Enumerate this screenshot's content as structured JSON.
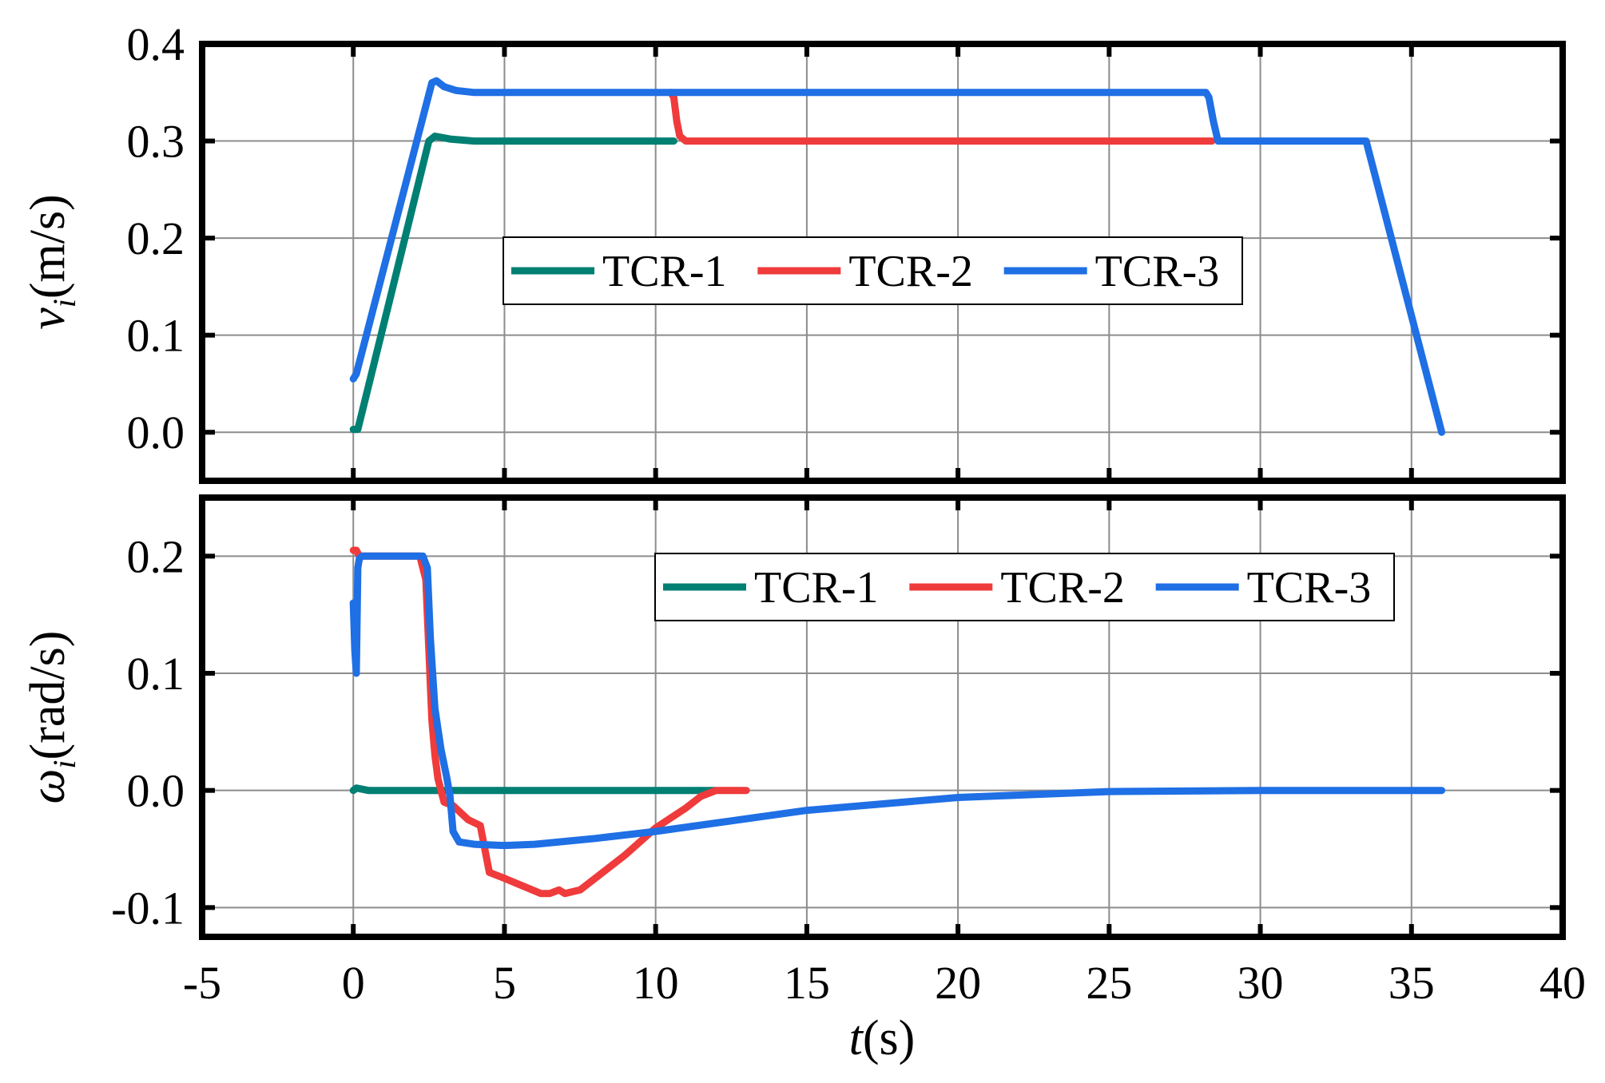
{
  "chart_data": [
    {
      "type": "line",
      "panel": "top",
      "ylabel": {
        "symbol": "v",
        "subscript": "i",
        "unit": "(m/s)"
      },
      "xlim": [
        -5,
        40
      ],
      "ylim": [
        -0.05,
        0.4
      ],
      "yticks": [
        0.0,
        0.1,
        0.2,
        0.3,
        0.4
      ],
      "ytick_labels": [
        "0.0",
        "0.1",
        "0.2",
        "0.3",
        "0.4"
      ],
      "grid": true,
      "legend_position": "center",
      "series": [
        {
          "name": "TCR-1",
          "color": "#007f73",
          "x": [
            0.0,
            0.15,
            2.5,
            2.7,
            3.2,
            4.0,
            10.6
          ],
          "y": [
            0.003,
            0.003,
            0.3,
            0.305,
            0.302,
            0.3,
            0.3
          ]
        },
        {
          "name": "TCR-2",
          "color": "#ef3b3b",
          "x": [
            10.5,
            10.6,
            10.7,
            10.8,
            11.0,
            28.4
          ],
          "y": [
            0.35,
            0.345,
            0.32,
            0.305,
            0.3,
            0.3
          ]
        },
        {
          "name": "TCR-3",
          "color": "#1f6fe5",
          "x": [
            0.0,
            0.1,
            2.6,
            2.75,
            3.0,
            3.4,
            4.0,
            10.5,
            28.2,
            28.3,
            28.45,
            28.6,
            33.5,
            36.0
          ],
          "y": [
            0.055,
            0.06,
            0.36,
            0.362,
            0.356,
            0.352,
            0.35,
            0.35,
            0.35,
            0.345,
            0.32,
            0.3,
            0.3,
            0.0
          ]
        }
      ]
    },
    {
      "type": "line",
      "panel": "bottom",
      "ylabel": {
        "symbol": "ω",
        "subscript": "i",
        "unit": "(rad/s)"
      },
      "xlabel": {
        "symbol": "t",
        "unit": "(s)"
      },
      "xlim": [
        -5,
        40
      ],
      "ylim": [
        -0.125,
        0.25
      ],
      "xticks": [
        -5,
        0,
        5,
        10,
        15,
        20,
        25,
        30,
        35,
        40
      ],
      "xtick_labels": [
        "-5",
        "0",
        "5",
        "10",
        "15",
        "20",
        "25",
        "30",
        "35",
        "40"
      ],
      "yticks": [
        -0.1,
        0.0,
        0.1,
        0.2
      ],
      "ytick_labels": [
        "-0.1",
        "0.0",
        "0.1",
        "0.2"
      ],
      "grid": true,
      "legend_position": "top-right",
      "series": [
        {
          "name": "TCR-1",
          "color": "#007f73",
          "x": [
            0.0,
            0.1,
            0.3,
            0.5,
            12.0
          ],
          "y": [
            0.0,
            0.002,
            0.001,
            0.0,
            0.0
          ]
        },
        {
          "name": "TCR-2",
          "color": "#ef3b3b",
          "x": [
            0.0,
            0.1,
            0.2,
            2.2,
            2.4,
            2.5,
            2.6,
            2.7,
            2.8,
            3.0,
            3.3,
            3.8,
            4.2,
            4.5,
            5.0,
            6.2,
            6.5,
            6.8,
            7.0,
            7.5,
            8.0,
            9.0,
            10.0,
            11.0,
            11.5,
            12.0,
            13.0
          ],
          "y": [
            0.205,
            0.205,
            0.2,
            0.2,
            0.18,
            0.12,
            0.06,
            0.03,
            0.01,
            -0.01,
            -0.013,
            -0.025,
            -0.03,
            -0.07,
            -0.075,
            -0.088,
            -0.088,
            -0.085,
            -0.088,
            -0.085,
            -0.075,
            -0.055,
            -0.032,
            -0.015,
            -0.005,
            0.0,
            0.0
          ]
        },
        {
          "name": "TCR-3",
          "color": "#1f6fe5",
          "x": [
            0.0,
            0.05,
            0.1,
            0.15,
            0.2,
            0.3,
            2.3,
            2.45,
            2.55,
            2.7,
            2.9,
            3.1,
            3.2,
            3.3,
            3.5,
            4.0,
            5.0,
            6.0,
            8.0,
            10.0,
            12.5,
            15.0,
            20.0,
            25.0,
            30.0,
            36.0
          ],
          "y": [
            0.16,
            0.12,
            0.1,
            0.19,
            0.198,
            0.2,
            0.2,
            0.19,
            0.13,
            0.07,
            0.035,
            0.01,
            -0.005,
            -0.035,
            -0.044,
            -0.046,
            -0.047,
            -0.046,
            -0.041,
            -0.035,
            -0.026,
            -0.017,
            -0.006,
            -0.001,
            0.0,
            0.0
          ]
        }
      ]
    }
  ]
}
